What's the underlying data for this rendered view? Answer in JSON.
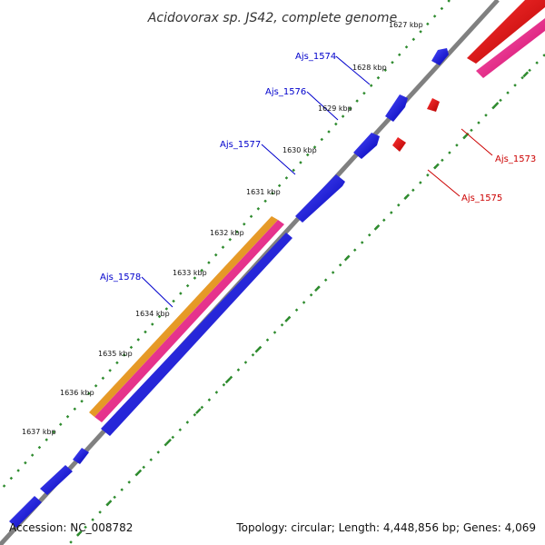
{
  "title": "Acidovorax sp. JS42, complete genome",
  "footer": {
    "accession": "Accession: NC_008782",
    "summary": "Topology: circular; Length: 4,448,856 bp; Genes: 4,069"
  },
  "ticks": [
    "1627 kbp",
    "1628 kbp",
    "1629 kbp",
    "1630 kbp",
    "1631 kbp",
    "1632 kbp",
    "1633 kbp",
    "1634 kbp",
    "1635 kbp",
    "1636 kbp",
    "1637 kbp"
  ],
  "genes": [
    {
      "name": "Ajs_1574",
      "strand": "forward"
    },
    {
      "name": "Ajs_1576",
      "strand": "forward"
    },
    {
      "name": "Ajs_1577",
      "strand": "forward"
    },
    {
      "name": "Ajs_1578",
      "strand": "forward"
    },
    {
      "name": "Ajs_1573",
      "strand": "reverse"
    },
    {
      "name": "Ajs_1575",
      "strand": "reverse"
    }
  ],
  "colors": {
    "forward_gene": "#1a1aff",
    "reverse_gene": "#ff0000",
    "orange_feature": "#ff9900",
    "pink_feature": "#ff3399",
    "backbone": "#808080",
    "tick_dots": "#2e8b2e",
    "forward_label": "#0000cc",
    "reverse_label": "#cc0000"
  }
}
